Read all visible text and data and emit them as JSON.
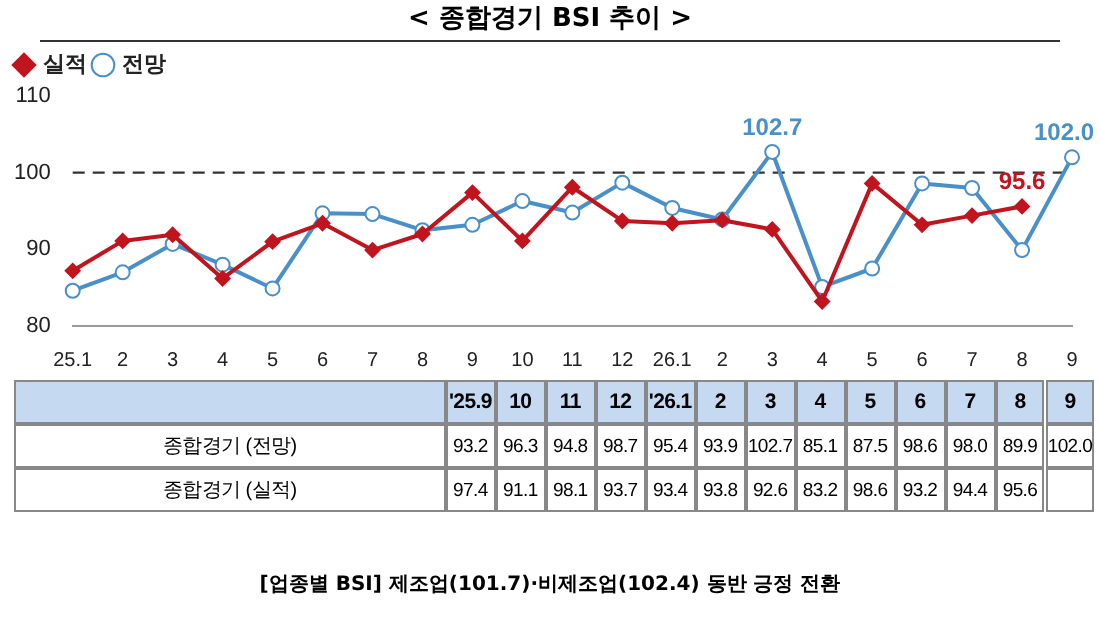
{
  "chart_data": {
    "type": "line",
    "title": "< 종합경기 BSI 추이 >",
    "categories": [
      "25.1",
      "2",
      "3",
      "4",
      "5",
      "6",
      "7",
      "8",
      "9",
      "10",
      "11",
      "12",
      "26.1",
      "2",
      "3",
      "4",
      "5",
      "6",
      "7",
      "8",
      "9"
    ],
    "series": [
      {
        "name": "전망",
        "color": "#4a90c8",
        "marker": "circle",
        "values": [
          84.6,
          87.0,
          90.7,
          88.0,
          84.9,
          94.7,
          94.6,
          92.5,
          93.2,
          96.3,
          94.8,
          98.7,
          95.4,
          93.9,
          102.7,
          85.1,
          87.5,
          98.6,
          98.0,
          89.9,
          102.0
        ],
        "value_labels": [
          null,
          null,
          null,
          null,
          null,
          null,
          null,
          null,
          "93.2",
          "96.3",
          "94.8",
          "98.7",
          "95.4",
          "93.9",
          "102.7",
          "85.1",
          "87.5",
          "98.6",
          "98.0",
          "89.9",
          "102.0"
        ]
      },
      {
        "name": "실적",
        "color": "#c0141e",
        "marker": "diamond",
        "values": [
          87.2,
          91.1,
          91.9,
          86.2,
          91.0,
          93.4,
          89.9,
          92.0,
          97.4,
          91.1,
          98.1,
          93.7,
          93.4,
          93.8,
          92.6,
          83.2,
          98.6,
          93.2,
          94.4,
          95.6,
          null
        ],
        "value_labels": [
          null,
          null,
          null,
          null,
          null,
          null,
          null,
          null,
          "97.4",
          "91.1",
          "98.1",
          "93.7",
          "93.4",
          "93.8",
          "92.6",
          "83.2",
          "98.6",
          "93.2",
          "94.4",
          "95.6",
          null
        ]
      }
    ],
    "ylim": [
      80,
      110
    ],
    "yticks": [
      80,
      90,
      100,
      110
    ],
    "grid": false,
    "legend": "top left",
    "line_style": "solid",
    "ref_lines": [
      {
        "axis": "y",
        "value": 100,
        "color": "#333333",
        "line_style": "dashed"
      }
    ],
    "annotations": [
      "102.7",
      "102.0",
      "95.6",
      "'25.9",
      "10",
      "11",
      "12",
      "'26.1",
      "2",
      "3",
      "4",
      "5",
      "6",
      "7",
      "8",
      "9",
      "종합경기 (전망)",
      "종합경기 (실적)",
      "[업종별 BSI] 제조업(101.7)·비제조업(102.4) 동반 긍정 전환"
    ]
  }
}
